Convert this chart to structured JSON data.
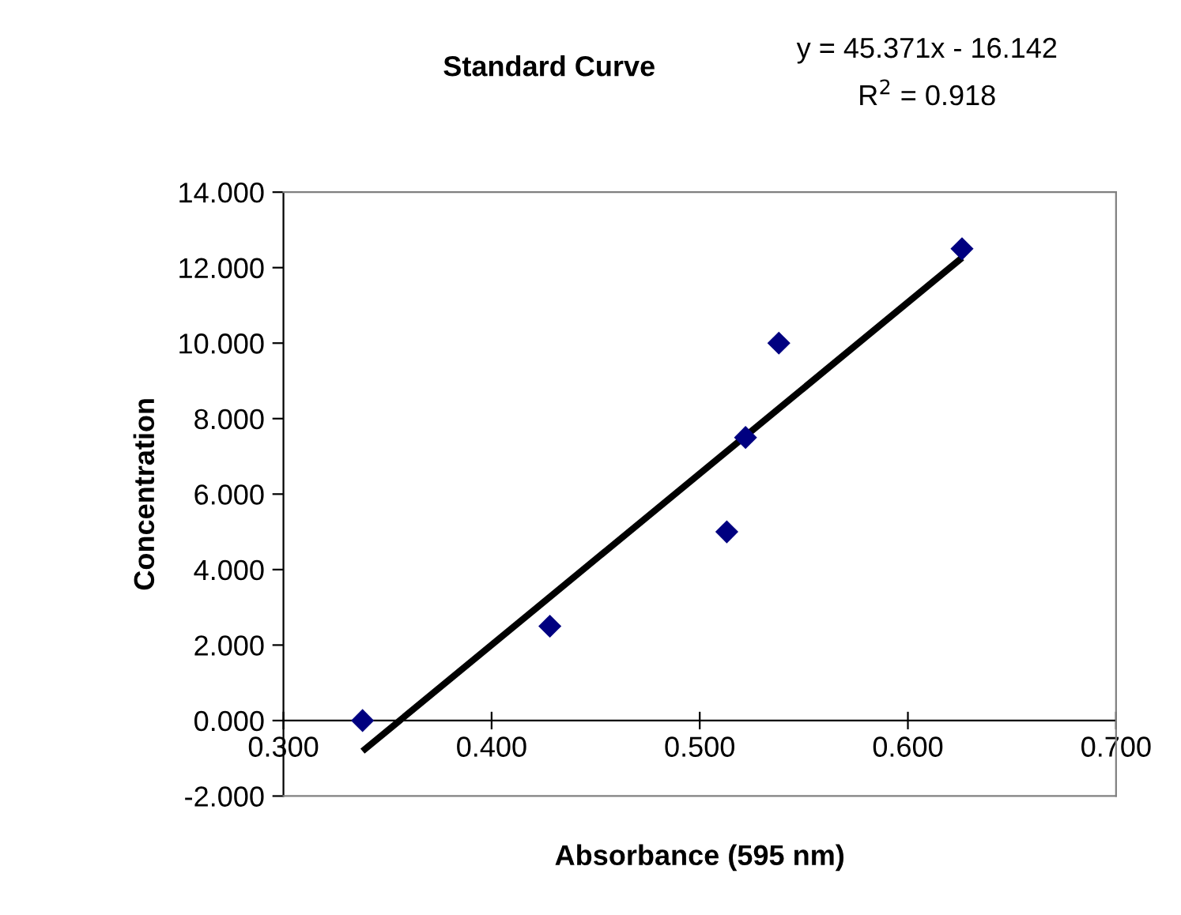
{
  "chart_data": {
    "type": "scatter",
    "title": "Standard Curve",
    "xlabel": "Absorbance (595 nm)",
    "ylabel": "Concentration",
    "annotations": [
      "y = 45.371x - 16.142",
      "R$^{2}$ = 0.918"
    ],
    "series": [
      {
        "color": "#000080",
        "marker": "diamond",
        "x": [
          0.338,
          0.428,
          0.513,
          0.522,
          0.538,
          0.626
        ],
        "values": [
          0.0,
          2.5,
          5.0,
          7.5,
          10.0,
          12.5
        ]
      },
      {
        "type": "line",
        "color": "#000000",
        "marker": "none",
        "x": [
          0.338,
          0.626
        ],
        "values": [
          -0.81,
          12.26
        ]
      }
    ],
    "xlim": [
      0.3,
      0.7
    ],
    "xticks": [
      {
        "value": 0.3,
        "label": "0.300"
      },
      {
        "value": 0.4,
        "label": "0.400"
      },
      {
        "value": 0.5,
        "label": "0.500"
      },
      {
        "value": 0.6,
        "label": "0.600"
      },
      {
        "value": 0.7,
        "label": "0.700"
      }
    ],
    "ylim": [
      -2,
      14
    ],
    "yticks": [
      {
        "value": -2,
        "label": "-2.000"
      },
      {
        "value": 0,
        "label": "0.000"
      },
      {
        "value": 2,
        "label": "2.000"
      },
      {
        "value": 4,
        "label": "4.000"
      },
      {
        "value": 6,
        "label": "6.000"
      },
      {
        "value": 8,
        "label": "8.000"
      },
      {
        "value": 10,
        "label": "10.000"
      },
      {
        "value": 12,
        "label": "12.000"
      },
      {
        "value": 14,
        "label": "14.000"
      }
    ],
    "grid": false,
    "legend": false
  }
}
